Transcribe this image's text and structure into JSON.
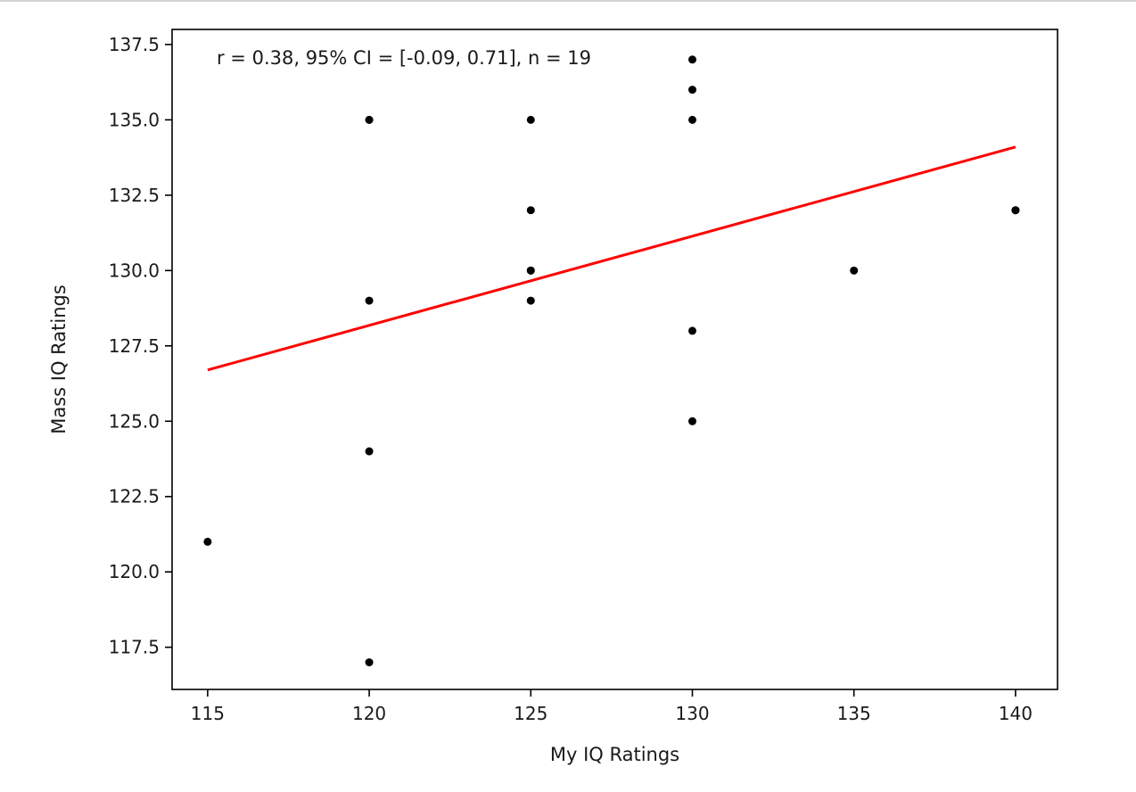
{
  "chart_data": {
    "type": "scatter",
    "title": "",
    "xlabel": "My IQ Ratings",
    "ylabel": "Mass IQ Ratings",
    "xlim": [
      113.9,
      141.3
    ],
    "ylim": [
      116.1,
      138.0
    ],
    "xticks": [
      115,
      120,
      125,
      130,
      135,
      140
    ],
    "xtick_labels": [
      "115",
      "120",
      "125",
      "130",
      "135",
      "140"
    ],
    "yticks": [
      117.5,
      120.0,
      122.5,
      125.0,
      127.5,
      130.0,
      132.5,
      135.0,
      137.5
    ],
    "ytick_labels": [
      "117.5",
      "120.0",
      "122.5",
      "125.0",
      "127.5",
      "130.0",
      "132.5",
      "135.0",
      "137.5"
    ],
    "grid": false,
    "annotation": "r = 0.38, 95% CI = [-0.09, 0.71], n = 19",
    "points": {
      "x": [
        115,
        120,
        120,
        120,
        120,
        120,
        125,
        125,
        125,
        125,
        125,
        130,
        130,
        130,
        130,
        130,
        135,
        140,
        140
      ],
      "y": [
        121,
        117,
        124,
        129,
        135,
        135,
        129,
        130,
        130,
        132,
        135,
        125,
        128,
        135,
        136,
        137,
        130,
        132,
        132
      ],
      "color": "#000000"
    },
    "fit_line": {
      "x": [
        115,
        140
      ],
      "y": [
        126.7,
        134.1
      ],
      "color": "#ff0000"
    }
  }
}
